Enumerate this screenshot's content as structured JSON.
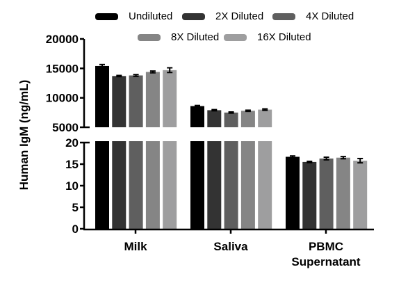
{
  "chart_data": {
    "type": "bar",
    "title": "",
    "xlabel": "",
    "ylabel": "Human IgM (ng/mL)",
    "categories": [
      "Milk",
      "Saliva",
      "PBMC Supernatant"
    ],
    "category_lines": [
      [
        "Milk"
      ],
      [
        "Saliva"
      ],
      [
        "PBMC",
        "Supernatant"
      ]
    ],
    "series": [
      {
        "name": "Undiluted",
        "color": "#000000",
        "values": [
          15400,
          8600,
          16.7
        ],
        "errors": [
          250,
          100,
          0.2
        ]
      },
      {
        "name": "2X Diluted",
        "color": "#333333",
        "values": [
          13700,
          7900,
          15.5
        ],
        "errors": [
          100,
          100,
          0.15
        ]
      },
      {
        "name": "4X Diluted",
        "color": "#5f5f5f",
        "values": [
          13800,
          7500,
          16.3
        ],
        "errors": [
          150,
          100,
          0.3
        ]
      },
      {
        "name": "8X Diluted",
        "color": "#858585",
        "values": [
          14400,
          7800,
          16.5
        ],
        "errors": [
          150,
          100,
          0.25
        ]
      },
      {
        "name": "16X Diluted",
        "color": "#9e9e9f",
        "values": [
          14700,
          8000,
          15.8
        ],
        "errors": [
          400,
          120,
          0.5
        ]
      }
    ],
    "y_axis_broken": true,
    "y_segments": [
      {
        "range": [
          5000,
          20000
        ],
        "ticks": [
          5000,
          10000,
          15000,
          20000
        ]
      },
      {
        "range": [
          0,
          20
        ],
        "ticks": [
          0,
          5,
          10,
          15,
          20
        ]
      }
    ],
    "legend_position": "top",
    "grid": false
  }
}
